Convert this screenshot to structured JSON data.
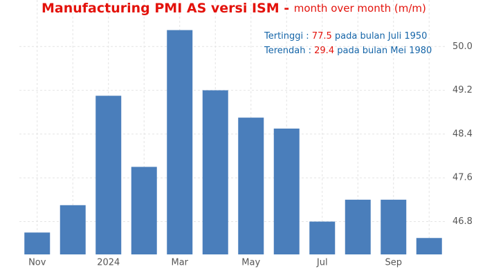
{
  "chart_data": {
    "type": "bar",
    "title": "Manufacturing PMI AS versi ISM - ",
    "subtitle": "month over month (m/m)",
    "annotations": [
      {
        "label": "Tertinggi : ",
        "value": "77.5",
        "text": " pada bulan Juli 1950"
      },
      {
        "label": "Terendah : ",
        "value": "29.4",
        "text": " pada bulan Mei 1980"
      }
    ],
    "categories": [
      "Nov",
      null,
      "2024",
      null,
      "Mar",
      null,
      "May",
      null,
      "Jul",
      null,
      "Sep",
      null
    ],
    "values": [
      46.6,
      47.1,
      49.1,
      47.8,
      50.3,
      49.2,
      48.7,
      48.5,
      46.8,
      47.2,
      47.2,
      46.5
    ],
    "color": "#4a7ebb",
    "ylim": [
      46.2,
      50.85
    ],
    "yticks": [
      46.8,
      47.6,
      48.4,
      49.2,
      {
        "value": 50,
        "label": "50.0"
      }
    ],
    "grid": true
  }
}
